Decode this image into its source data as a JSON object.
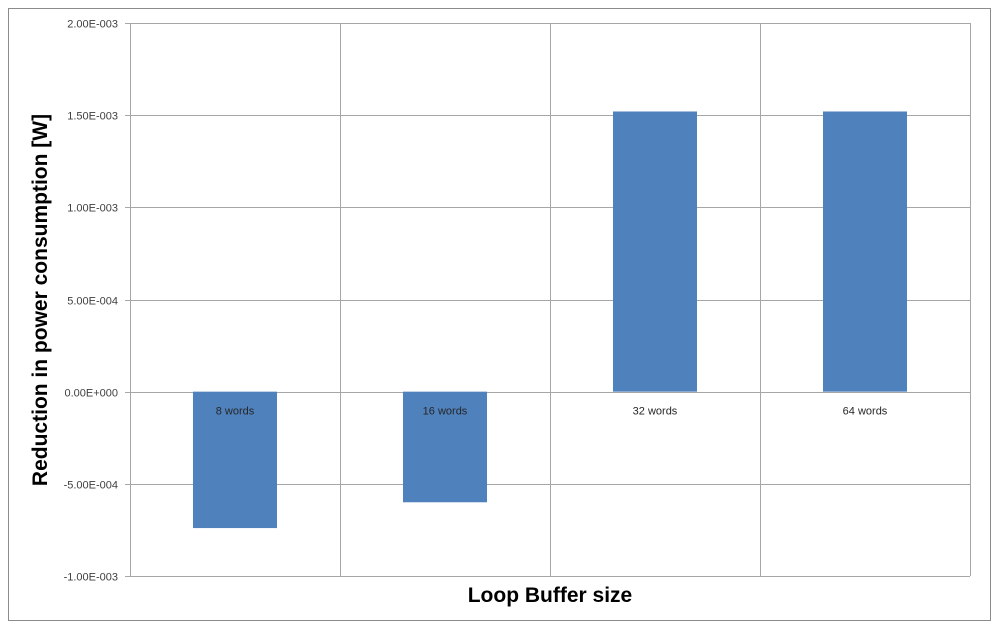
{
  "chart_data": {
    "type": "bar",
    "title": "",
    "xlabel": "Loop Buffer size",
    "ylabel": "Reduction in power consumption [W]",
    "categories": [
      "8 words",
      "16 words",
      "32 words",
      "64 words"
    ],
    "values": [
      -0.00074,
      -0.0006,
      0.00152,
      0.00152
    ],
    "ylim": [
      -0.001,
      0.002
    ],
    "yticks": [
      -0.001,
      -0.0005,
      0,
      0.0005,
      0.001,
      0.0015,
      0.002
    ],
    "ytick_labels": [
      "-1.00E-003",
      "-5.00E-004",
      "0.00E+000",
      "5.00E-004",
      "1.00E-003",
      "1.50E-003",
      "2.00E-003"
    ],
    "grid": true,
    "legend": "none",
    "bar_color": "#4f81bd"
  }
}
